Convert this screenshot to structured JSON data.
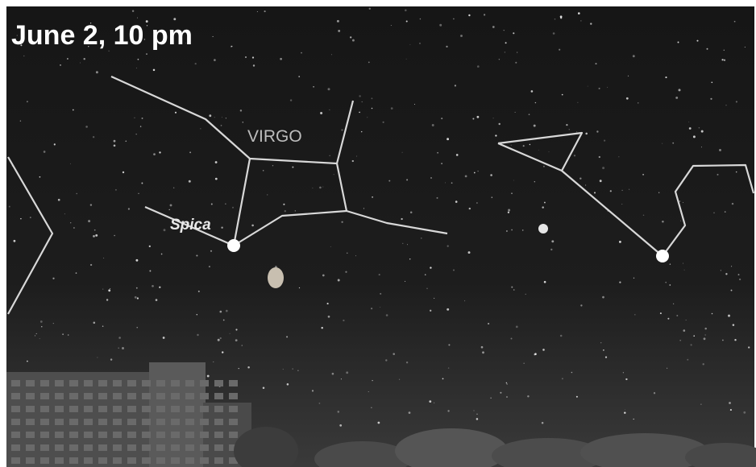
{
  "title": "June 2, 10 pm",
  "labels": {
    "constellation": "VIRGO",
    "star": "Spica"
  }
}
